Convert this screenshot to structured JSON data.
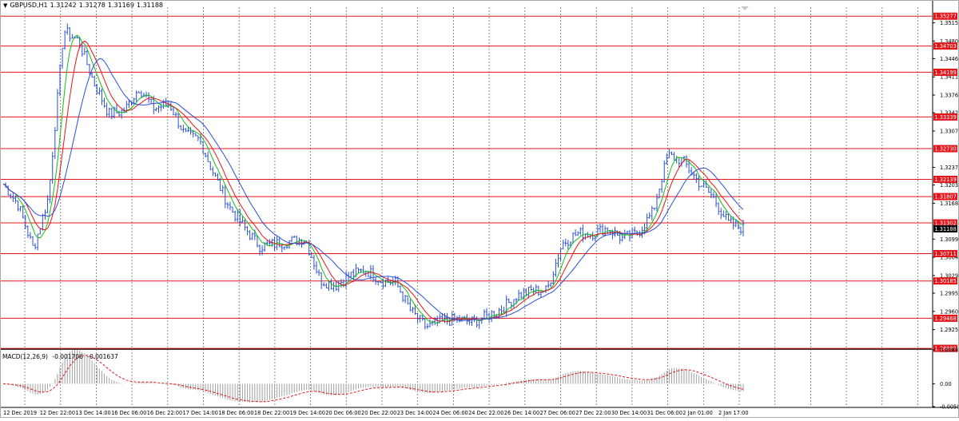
{
  "window": {
    "symbol_label": "GBPUSD,H1",
    "ohlc": [
      "1.31242",
      "1.31278",
      "1.31169",
      "1.31188"
    ]
  },
  "macd_panel": {
    "label": "MACD(12,26,9)",
    "values": [
      "-0.001706",
      "-0.001637"
    ]
  },
  "colors": {
    "candles": "#2a4fd6",
    "level_line": "#e3151a",
    "ma_fast": "#12c012",
    "ma_mid": "#e3151a",
    "ma_slow": "#2a4fd6",
    "grid": "#707070",
    "macd_hist": "#a0a0a0",
    "macd_signal": "#e3151a",
    "price_box_bg": "#000000"
  },
  "chart_data": {
    "type": "candlestick",
    "instrument": "GBPUSD",
    "timeframe": "H1",
    "price_axis_ticks": [
      "1.35150",
      "1.34800",
      "1.34460",
      "1.34110",
      "1.33760",
      "1.33420",
      "1.33070",
      "1.32370",
      "1.32030",
      "1.31680",
      "1.30990",
      "1.30640",
      "1.30290",
      "1.29950",
      "1.29600",
      "1.29250"
    ],
    "price_range": [
      1.2889,
      1.3545
    ],
    "time_axis_labels": [
      "12 Dec 2019",
      "12 Dec 22:00",
      "13 Dec 14:00",
      "16 Dec 06:00",
      "16 Dec 22:00",
      "17 Dec 14:00",
      "18 Dec 06:00",
      "18 Dec 22:00",
      "19 Dec 14:00",
      "20 Dec 06:00",
      "20 Dec 22:00",
      "23 Dec 14:00",
      "24 Dec 06:00",
      "24 Dec 22:00",
      "26 Dec 14:00",
      "27 Dec 06:00",
      "27 Dec 22:00",
      "30 Dec 14:00",
      "31 Dec 06:00",
      "2 Jan 01:00",
      "2 Jan 17:00"
    ],
    "horizontal_levels": [
      {
        "value": "1.35277"
      },
      {
        "value": "1.34703"
      },
      {
        "value": "1.34199"
      },
      {
        "value": "1.33339"
      },
      {
        "value": "1.32730"
      },
      {
        "value": "1.32139"
      },
      {
        "value": "1.31807"
      },
      {
        "value": "1.31302"
      },
      {
        "value": "1.30711"
      },
      {
        "value": "1.30185"
      },
      {
        "value": "1.29468"
      },
      {
        "value": "1.28889"
      }
    ],
    "current_price": "1.31188",
    "price_path": [
      {
        "x": "12 Dec 2019",
        "y": 1.3205
      },
      {
        "x": "12 Dec 17:00",
        "y": 1.3165
      },
      {
        "x": "12 Dec 21:00",
        "y": 1.308
      },
      {
        "x": "12 Dec 22:00",
        "y": 1.318
      },
      {
        "x": "13 Dec 02:00",
        "y": 1.35
      },
      {
        "x": "13 Dec 05:00",
        "y": 1.348
      },
      {
        "x": "13 Dec 10:00",
        "y": 1.34
      },
      {
        "x": "13 Dec 14:00",
        "y": 1.334
      },
      {
        "x": "13 Dec 20:00",
        "y": 1.3345
      },
      {
        "x": "16 Dec 02:00",
        "y": 1.339
      },
      {
        "x": "16 Dec 06:00",
        "y": 1.335
      },
      {
        "x": "16 Dec 12:00",
        "y": 1.336
      },
      {
        "x": "16 Dec 16:00",
        "y": 1.33
      },
      {
        "x": "16 Dec 22:00",
        "y": 1.329
      },
      {
        "x": "17 Dec 06:00",
        "y": 1.322
      },
      {
        "x": "17 Dec 14:00",
        "y": 1.316
      },
      {
        "x": "17 Dec 22:00",
        "y": 1.312
      },
      {
        "x": "18 Dec 06:00",
        "y": 1.3085
      },
      {
        "x": "18 Dec 14:00",
        "y": 1.309
      },
      {
        "x": "18 Dec 22:00",
        "y": 1.3095
      },
      {
        "x": "19 Dec 06:00",
        "y": 1.31
      },
      {
        "x": "19 Dec 14:00",
        "y": 1.302
      },
      {
        "x": "19 Dec 22:00",
        "y": 1.301
      },
      {
        "x": "20 Dec 06:00",
        "y": 1.303
      },
      {
        "x": "20 Dec 14:00",
        "y": 1.304
      },
      {
        "x": "20 Dec 22:00",
        "y": 1.302
      },
      {
        "x": "23 Dec 06:00",
        "y": 1.3015
      },
      {
        "x": "23 Dec 10:00",
        "y": 1.296
      },
      {
        "x": "23 Dec 14:00",
        "y": 1.293
      },
      {
        "x": "23 Dec 22:00",
        "y": 1.294
      },
      {
        "x": "24 Dec 06:00",
        "y": 1.2945
      },
      {
        "x": "24 Dec 14:00",
        "y": 1.294
      },
      {
        "x": "24 Dec 22:00",
        "y": 1.295
      },
      {
        "x": "26 Dec 06:00",
        "y": 1.2965
      },
      {
        "x": "26 Dec 14:00",
        "y": 1.299
      },
      {
        "x": "26 Dec 22:00",
        "y": 1.3
      },
      {
        "x": "27 Dec 06:00",
        "y": 1.3
      },
      {
        "x": "27 Dec 14:00",
        "y": 1.309
      },
      {
        "x": "27 Dec 22:00",
        "y": 1.311
      },
      {
        "x": "30 Dec 06:00",
        "y": 1.311
      },
      {
        "x": "30 Dec 14:00",
        "y": 1.312
      },
      {
        "x": "30 Dec 22:00",
        "y": 1.31
      },
      {
        "x": "31 Dec 06:00",
        "y": 1.311
      },
      {
        "x": "31 Dec 14:00",
        "y": 1.315
      },
      {
        "x": "31 Dec 20:00",
        "y": 1.326
      },
      {
        "x": "2 Jan 01:00",
        "y": 1.325
      },
      {
        "x": "2 Jan 06:00",
        "y": 1.321
      },
      {
        "x": "2 Jan 12:00",
        "y": 1.318
      },
      {
        "x": "2 Jan 17:00",
        "y": 1.313
      },
      {
        "x": "2 Jan 21:00",
        "y": 1.312
      }
    ],
    "macd": {
      "axis_ticks": [
        "0.00888",
        "0.00",
        "-0.005969"
      ],
      "range": [
        -0.005969,
        0.00888
      ]
    }
  }
}
